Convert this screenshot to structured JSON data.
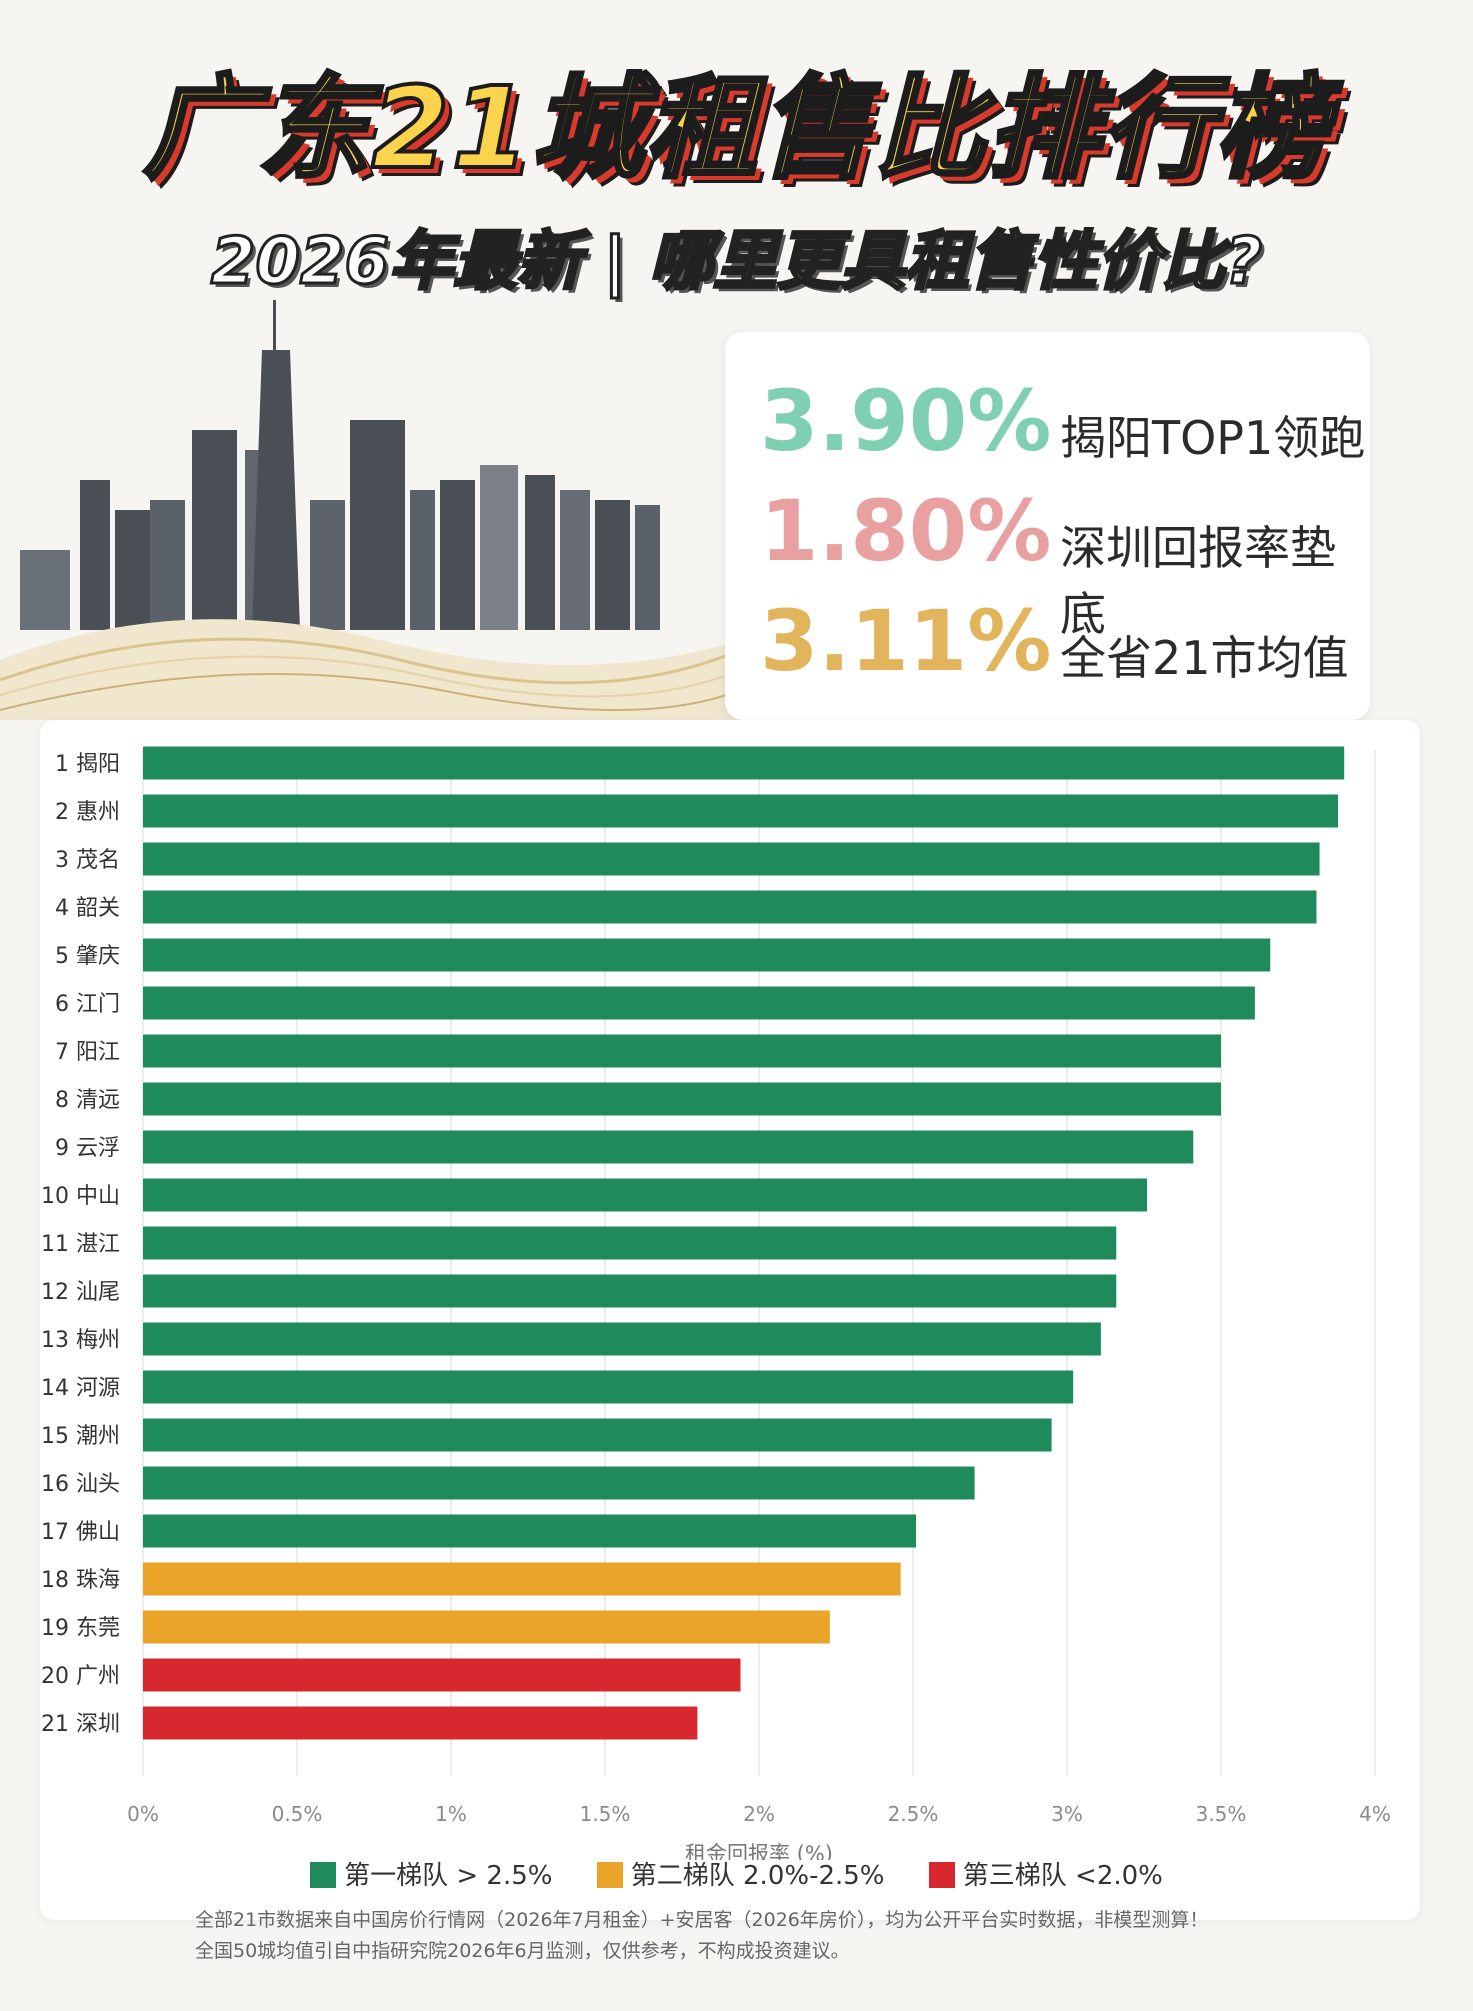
{
  "header": {
    "title": "广东21城租售比排行榜",
    "subtitle": "2026年最新 | 哪里更具租售性价比?"
  },
  "stats": [
    {
      "value": "3.90%",
      "label": "揭阳TOP1领跑",
      "color": "#7fcfb2"
    },
    {
      "value": "1.80%",
      "label": "深圳回报率垫底",
      "color": "#e8a0a0"
    },
    {
      "value": "3.11%",
      "label": "全省21市均值",
      "color": "#e2b45b"
    }
  ],
  "chart_data": {
    "type": "bar",
    "orientation": "horizontal",
    "xlabel": "租金回报率 (%)",
    "xlim": [
      0,
      4
    ],
    "xticks": [
      0,
      0.5,
      1,
      1.5,
      2,
      2.5,
      3,
      3.5,
      4
    ],
    "xtick_labels": [
      "0%",
      "0.5%",
      "1%",
      "1.5%",
      "2%",
      "2.5%",
      "3%",
      "3.5%",
      "4%"
    ],
    "categories": [
      "1 揭阳",
      "2 惠州",
      "3 茂名",
      "4 韶关",
      "5 肇庆",
      "6 江门",
      "7 阳江",
      "8 清远",
      "9 云浮",
      "10 中山",
      "11 湛江",
      "12 汕尾",
      "13 梅州",
      "14 河源",
      "15 潮州",
      "16 汕头",
      "17 佛山",
      "18 珠海",
      "19 东莞",
      "20 广州",
      "21 深圳"
    ],
    "values": [
      3.9,
      3.88,
      3.82,
      3.81,
      3.66,
      3.61,
      3.5,
      3.5,
      3.41,
      3.26,
      3.16,
      3.16,
      3.11,
      3.02,
      2.95,
      2.7,
      2.51,
      2.46,
      2.23,
      1.94,
      1.8
    ],
    "tiers": [
      1,
      1,
      1,
      1,
      1,
      1,
      1,
      1,
      1,
      1,
      1,
      1,
      1,
      1,
      1,
      1,
      1,
      2,
      2,
      3,
      3
    ],
    "tier_colors": {
      "1": "#1f8a5b",
      "2": "#eba42a",
      "3": "#d7282f"
    },
    "grid": true,
    "legend_position": "bottom"
  },
  "legend": [
    {
      "label": "第一梯队 > 2.5%",
      "color": "#1f8a5b"
    },
    {
      "label": "第二梯队 2.0%-2.5%",
      "color": "#eba42a"
    },
    {
      "label": "第三梯队 <2.0%",
      "color": "#d7282f"
    }
  ],
  "footnote": {
    "line1": "全部21市数据来自中国房价行情网（2026年7月租金）+安居客（2026年房价），均为公开平台实时数据，非模型测算！",
    "line2": "全国50城均值引自中指研究院2026年6月监测，仅供参考，不构成投资建议。"
  }
}
